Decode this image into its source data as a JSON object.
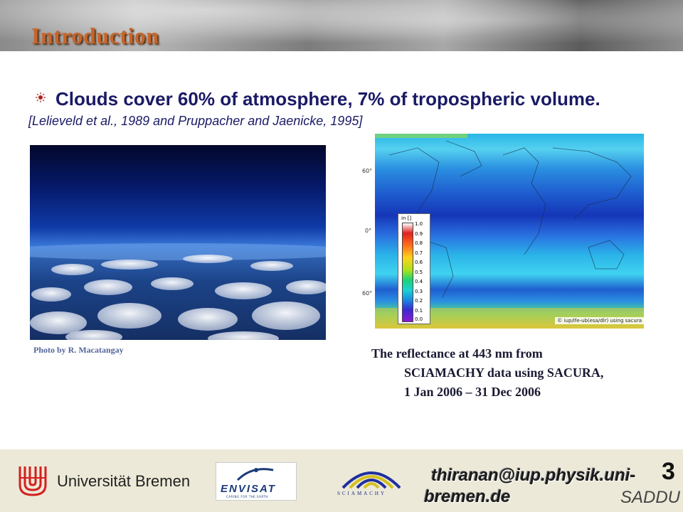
{
  "header": {
    "title": "Introduction"
  },
  "bullet": {
    "text": "Clouds cover 60% of atmosphere, 7% of tropospheric volume.",
    "citation": "[Lelieveld et al., 1989 and Pruppacher and Jaenicke, 1995]"
  },
  "photo": {
    "caption": "Photo by R. Macatangay"
  },
  "map": {
    "lat_labels": [
      "60°",
      "0°",
      "60°"
    ],
    "colorbar_unit": "in []",
    "colorbar_ticks": [
      "1.0",
      "0.9",
      "0.8",
      "0.7",
      "0.6",
      "0.5",
      "0.4",
      "0.3",
      "0.2",
      "0.1",
      "0.0"
    ],
    "copyright": "© iup/ife-ub(esa/dlr) using sacura",
    "caption_line1": "The reflectance at 443 nm from",
    "caption_line2": "SCIAMACHY data using SACURA,",
    "caption_line3": "1 Jan 2006 – 31 Dec 2006"
  },
  "footer": {
    "university": "Universität Bremen",
    "envisat": "ENVISAT",
    "envisat_tagline": "CARING FOR THE EARTH",
    "sciamachy": "SCIAMACHY",
    "email_line1": "thiranan@iup.physik.uni-",
    "email_line2": "bremen.de",
    "page_number": "3",
    "saddu": "SADDU"
  }
}
